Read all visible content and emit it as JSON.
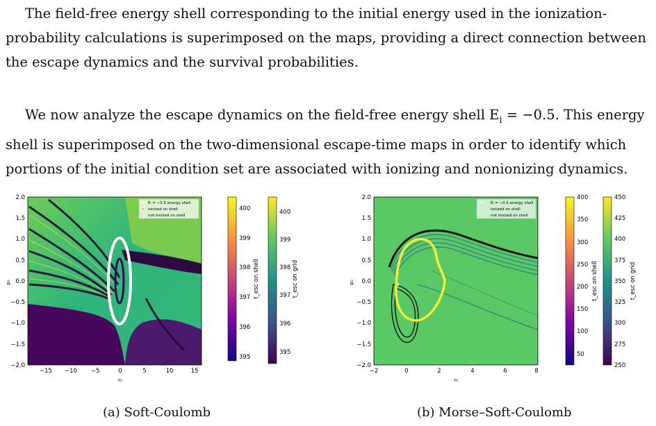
{
  "text": {
    "p1_l1": "The field-free energy shell corresponding to the initial energy used in the ionization-",
    "p1_l2": "probability calculations is superimposed on the maps, providing a direct connection between",
    "p1_l3": "the escape dynamics and the survival probabilities.",
    "p2_l1a": "We now analyze the escape dynamics on the field-free energy shell E",
    "p2_l1sub": "i",
    "p2_l1b": " = −0.5. This energy",
    "p2_l2": "shell is superimposed on the two-dimensional escape-time maps in order to identify which",
    "p2_l3": "portions of the initial condition set are associated with ionizing and nonionizing dynamics."
  },
  "figure": {
    "left": {
      "caption": "(a) Soft-Coulomb",
      "xlabel": "r₀",
      "ylabel": "p₀",
      "xticks": [
        "−15",
        "−10",
        "−5",
        "0",
        "5",
        "10",
        "15"
      ],
      "yticks": [
        "2.0",
        "1.5",
        "1.0",
        "0.5",
        "0.0",
        "−0.5",
        "−1.0",
        "−1.5",
        "−2.0"
      ],
      "legend": [
        "Eᵢ = −0.5 energy shell",
        "ionized on shell",
        "not ionized on shell"
      ],
      "cbar_shell_ticks": [
        "400",
        "399",
        "398",
        "397",
        "396",
        "395"
      ],
      "cbar_shell_label": "t_esc on shell",
      "cbar_grid_ticks": [
        "400",
        "399",
        "398",
        "397",
        "396",
        "395"
      ],
      "cbar_grid_label": "t_esc on grid"
    },
    "right": {
      "caption": "(b) Morse–Soft-Coulomb",
      "xlabel": "r₀",
      "ylabel": "p₀",
      "xticks": [
        "−2",
        "0",
        "2",
        "4",
        "6",
        "8"
      ],
      "yticks": [
        "2.0",
        "1.5",
        "1.0",
        "0.5",
        "0.0",
        "−0.5",
        "−1.0",
        "−1.5",
        "−2.0"
      ],
      "legend": [
        "Eᵢ = −0.5 energy shell",
        "ionized on shell",
        "not ionized on shell"
      ],
      "cbar_shell_ticks": [
        "400",
        "350",
        "300",
        "250",
        "200",
        "150",
        "100",
        "50"
      ],
      "cbar_shell_label": "t_esc on shell",
      "cbar_grid_ticks": [
        "450",
        "425",
        "400",
        "375",
        "350",
        "325",
        "300",
        "275",
        "250"
      ],
      "cbar_grid_label": "t_esc on grid"
    }
  },
  "colors": {
    "viridis_dark": "#440154",
    "viridis_teal": "#21918c",
    "viridis_green": "#5ec962",
    "viridis_yellow": "#fde725",
    "shell_white": "#ffffff",
    "shell_yellow": "#f7f44c"
  }
}
